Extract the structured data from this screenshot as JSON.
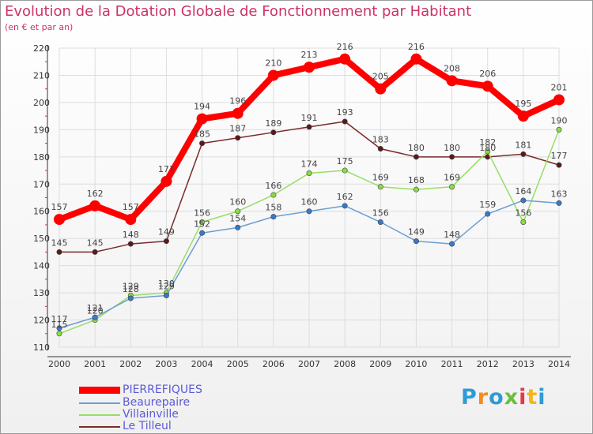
{
  "header": {
    "title": "Evolution de la Dotation Globale de Fonctionnement par Habitant",
    "subtitle": "(en € et par an)"
  },
  "logo": {
    "text": "Proxiti"
  },
  "colors": {
    "title": "#cc3366",
    "grid": "#dddddd",
    "axis_text": "#333333",
    "legend_text": "#5b5bd6"
  },
  "chart_data": {
    "type": "line",
    "title": "Evolution de la Dotation Globale de Fonctionnement par Habitant",
    "subtitle": "(en € et par an)",
    "x": [
      "2000",
      "2001",
      "2002",
      "2003",
      "2004",
      "2005",
      "2006",
      "2007",
      "2008",
      "2009",
      "2010",
      "2011",
      "2012",
      "2013",
      "2014"
    ],
    "ylim": [
      110,
      220
    ],
    "yticks": [
      110,
      120,
      130,
      140,
      150,
      160,
      170,
      180,
      190,
      200,
      210,
      220
    ],
    "grid": true,
    "legend_position": "bottom-left",
    "series": [
      {
        "name": "PIERREFIQUES",
        "color": "#ff0000",
        "marker": "#ff0000",
        "line_width": 8,
        "values": [
          157,
          162,
          157,
          171,
          194,
          196,
          210,
          213,
          216,
          205,
          216,
          208,
          206,
          195,
          201
        ]
      },
      {
        "name": "Beaurepaire",
        "color": "#6a9fd4",
        "marker": "#3a78c8",
        "line_width": 1.5,
        "values": [
          117,
          121,
          128,
          129,
          152,
          154,
          158,
          160,
          162,
          156,
          149,
          148,
          159,
          164,
          163
        ]
      },
      {
        "name": "Villainville",
        "color": "#99dd66",
        "marker": "#88dd44",
        "line_width": 1.5,
        "values": [
          115,
          120,
          129,
          130,
          156,
          160,
          166,
          174,
          175,
          169,
          168,
          169,
          182,
          156,
          190
        ]
      },
      {
        "name": "Le Tilleul",
        "color": "#7a2a2a",
        "marker": "#5a1a1a",
        "line_width": 1.5,
        "values": [
          145,
          145,
          148,
          149,
          185,
          187,
          189,
          191,
          193,
          183,
          180,
          180,
          180,
          181,
          177
        ]
      }
    ]
  }
}
